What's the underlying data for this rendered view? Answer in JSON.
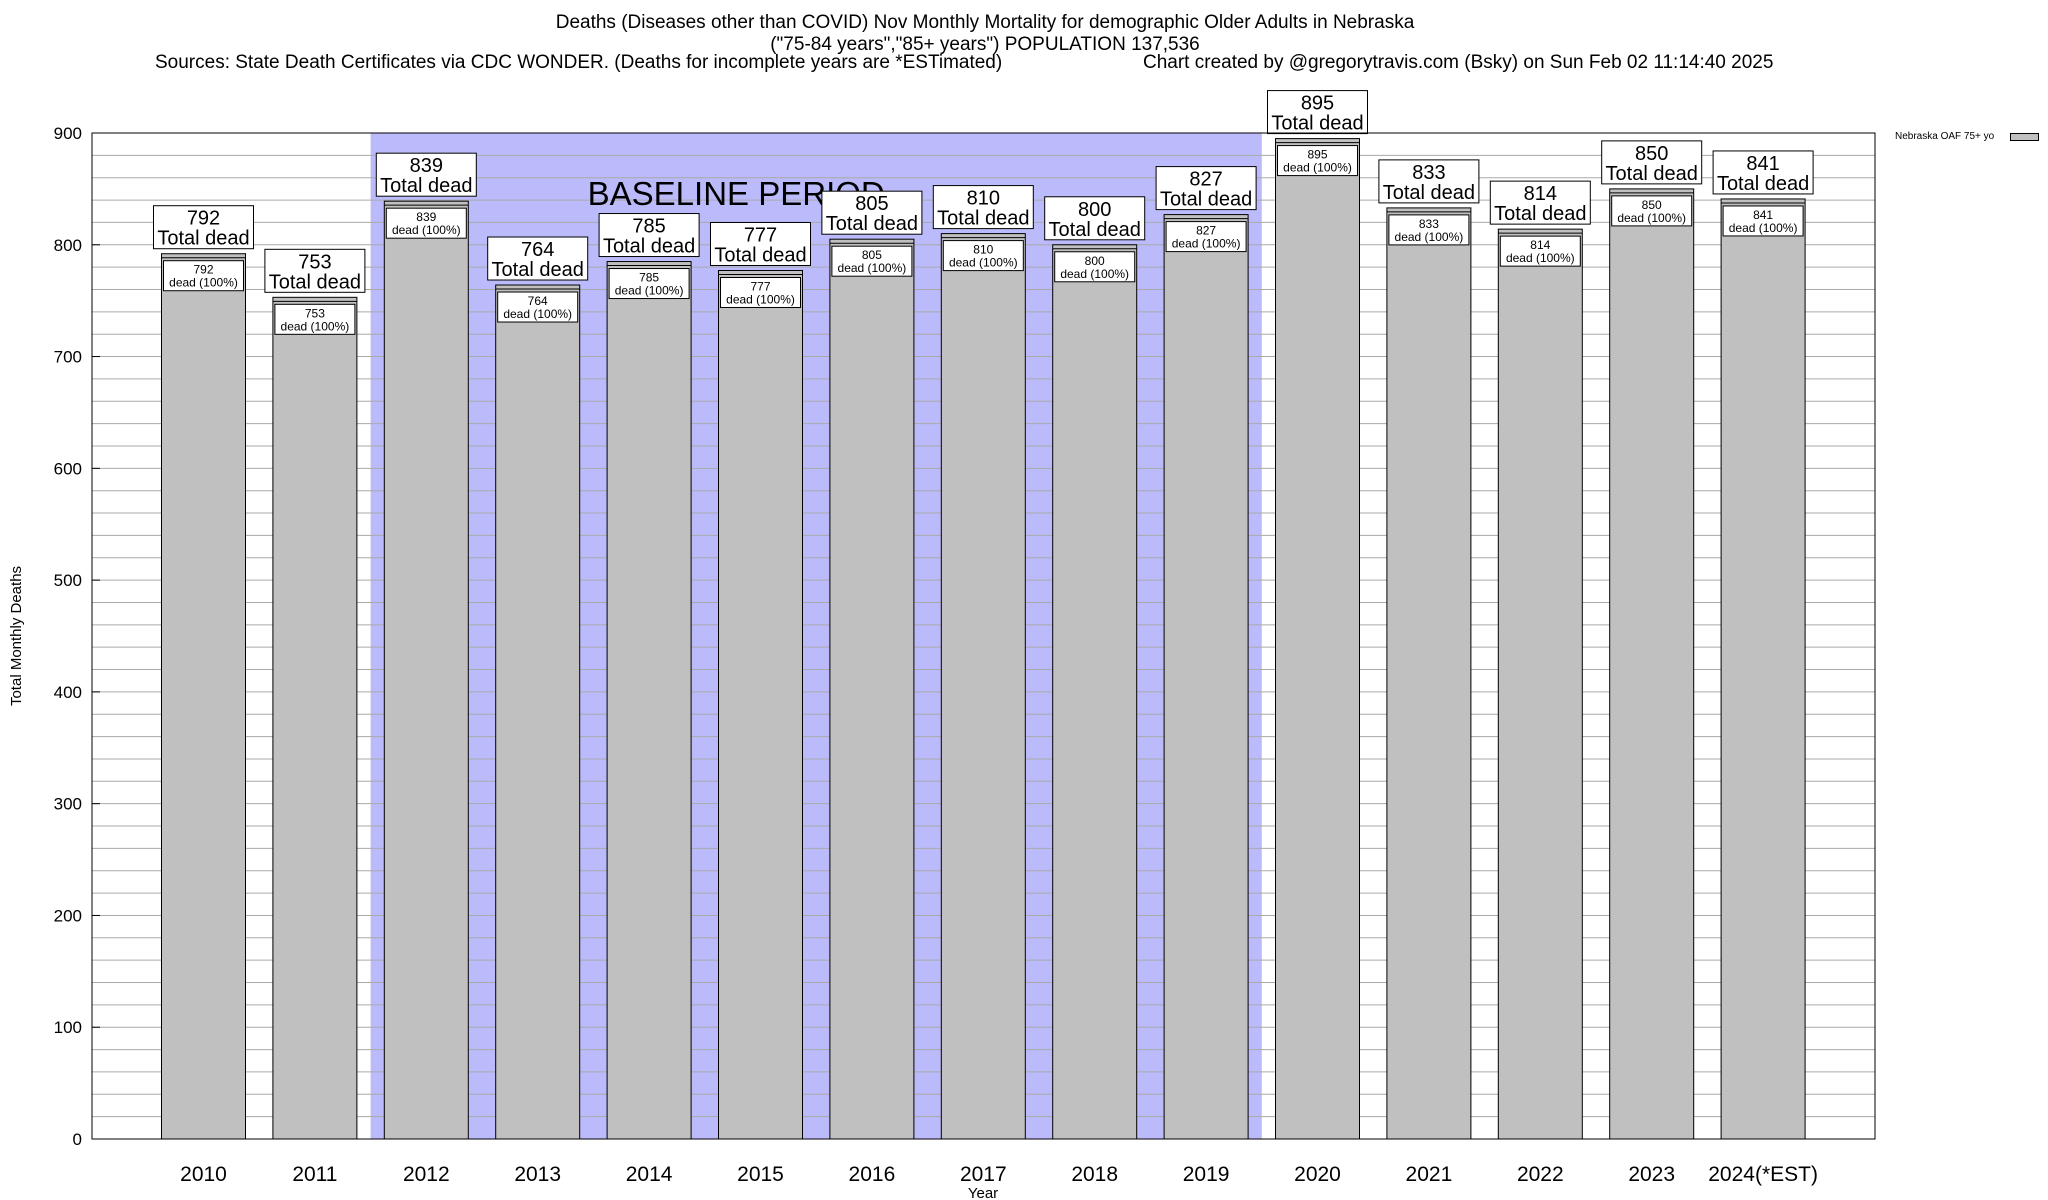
{
  "chart_data": {
    "type": "bar",
    "title": "Deaths (Diseases other than COVID) Nov Monthly Mortality for demographic Older Adults in Nebraska",
    "subtitle": "(\"75-84 years\",\"85+ years\") POPULATION 137,536",
    "sources": "Sources: State Death Certificates via CDC WONDER. (Deaths for incomplete years are *ESTimated)",
    "credit": "Chart created by @gregorytravis.com (Bsky) on Sun Feb 02 11:14:40 2025",
    "xlabel": "Year",
    "ylabel": "Total Monthly Deaths",
    "ylim": [
      0,
      900
    ],
    "yticks": [
      0,
      100,
      200,
      300,
      400,
      500,
      600,
      700,
      800,
      900
    ],
    "categories": [
      "2010",
      "2011",
      "2012",
      "2013",
      "2014",
      "2015",
      "2016",
      "2017",
      "2018",
      "2019",
      "2020",
      "2021",
      "2022",
      "2023",
      "2024(*EST)"
    ],
    "series": [
      {
        "name": "Nebraska OAF 75+ yo",
        "color": "#c0c0c0",
        "values": [
          792,
          753,
          839,
          764,
          785,
          777,
          805,
          810,
          800,
          827,
          895,
          833,
          814,
          850,
          841
        ]
      }
    ],
    "total_label_suffix": "Total dead",
    "inner_label_suffix": "dead (100%)",
    "baseline": {
      "label": "BASELINE PERIOD",
      "from_category": "2012",
      "to_category": "2019",
      "color": "#bbbbfb"
    },
    "legend_position": "top-right",
    "grid": true
  }
}
